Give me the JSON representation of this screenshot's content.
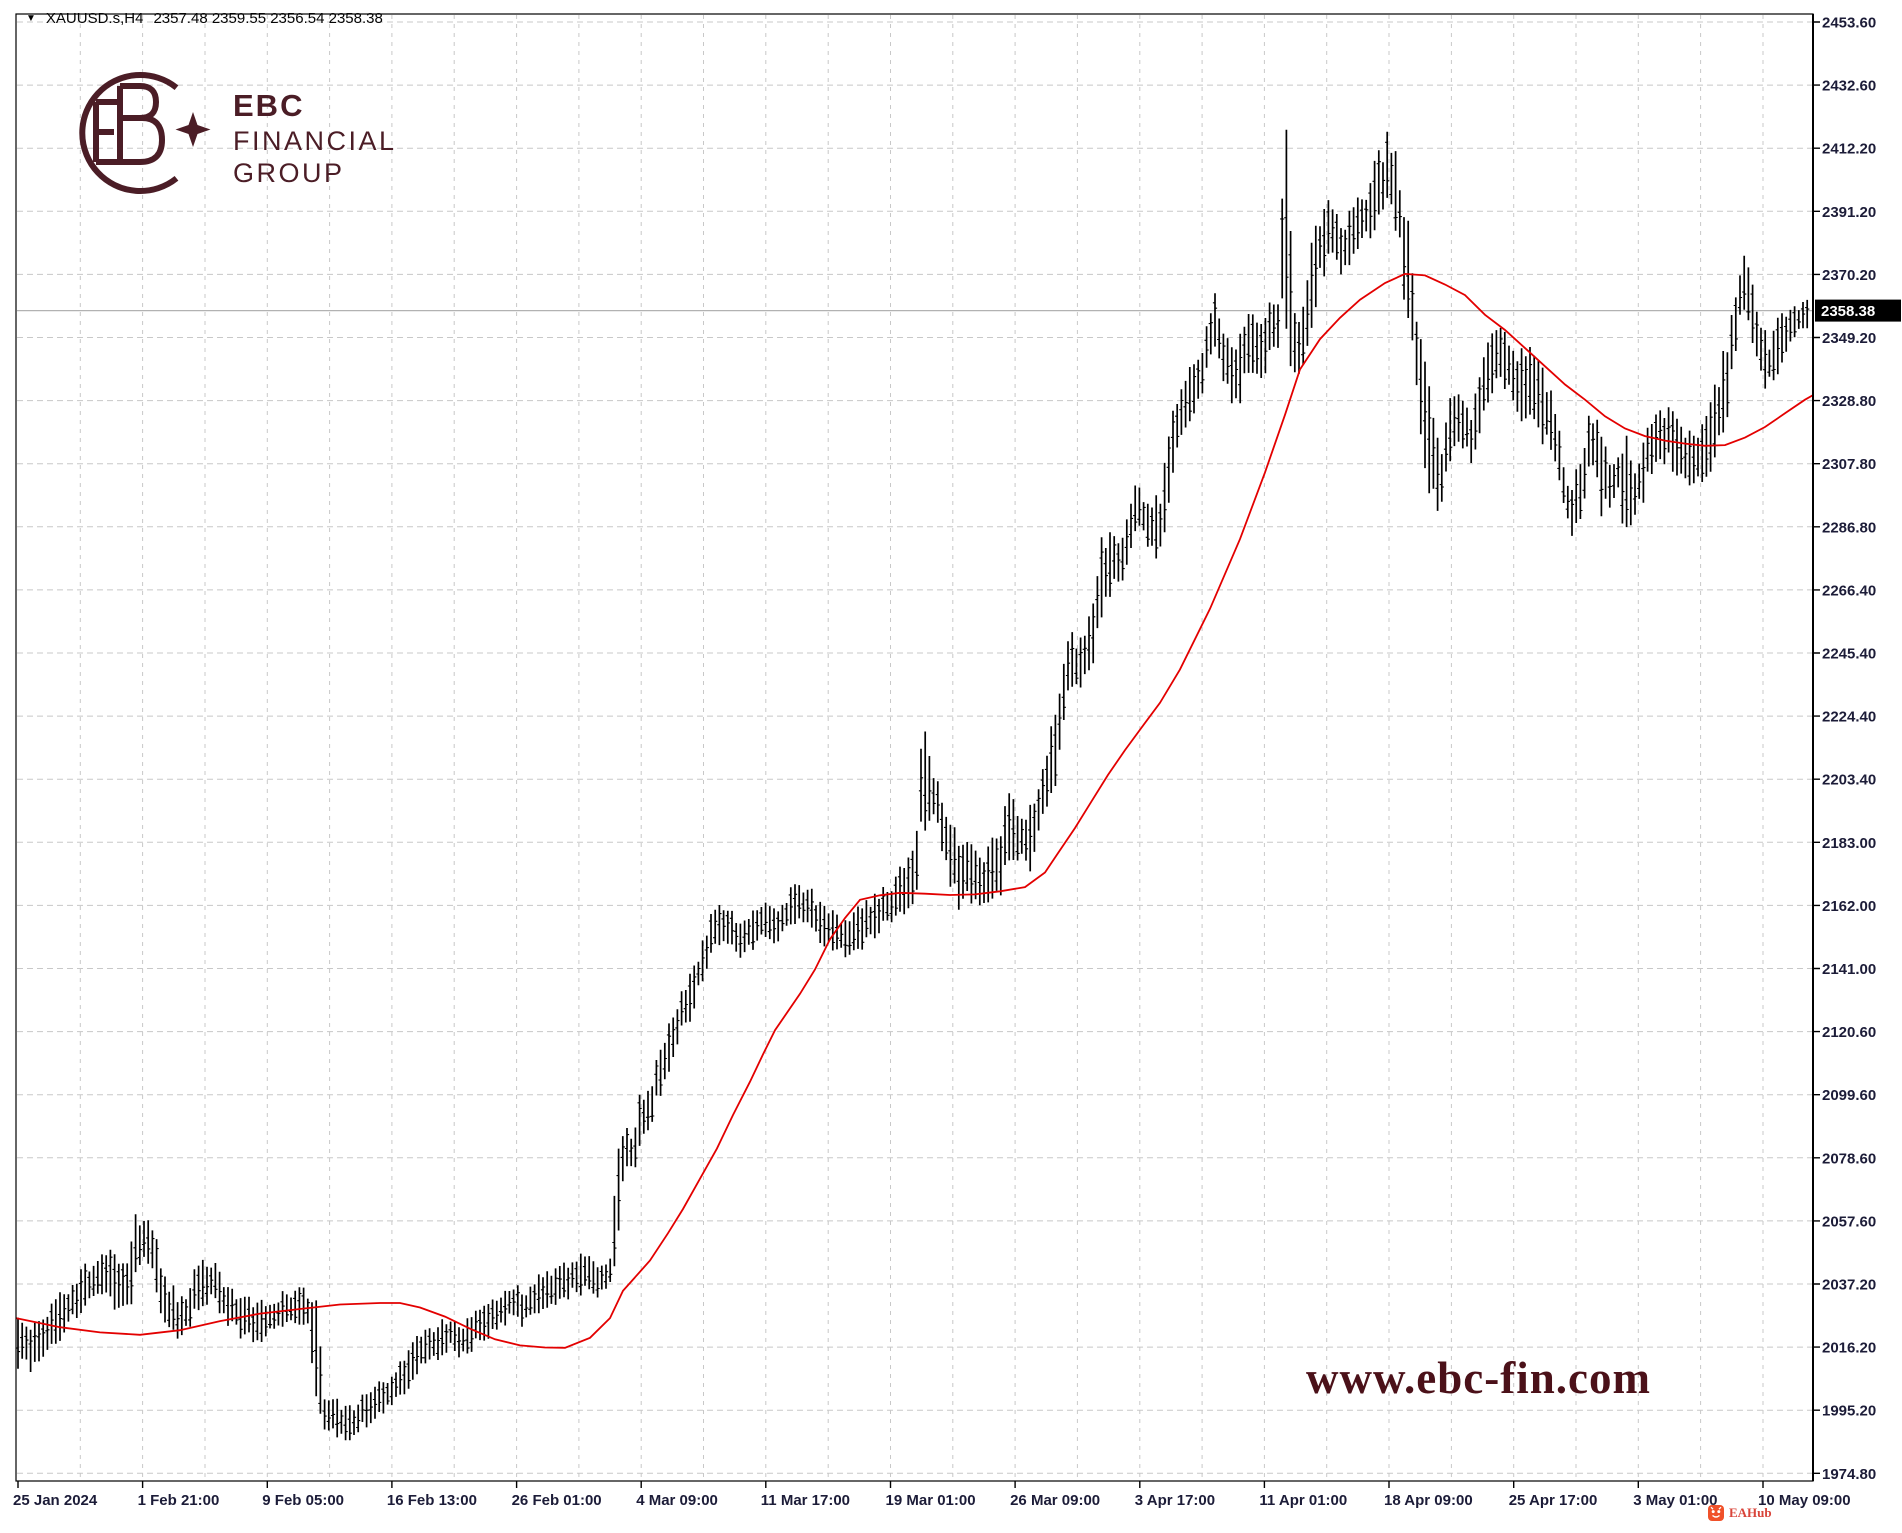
{
  "header": {
    "collapse_glyph": "▼",
    "symbol": "XAUUSD.s,H4",
    "ohlc": "2357.48 2359.55 2356.54 2358.38"
  },
  "logo": {
    "line1": "EBC",
    "line2": "FINANCIAL",
    "line3": "GROUP",
    "color": "#4b1d26"
  },
  "watermark": {
    "text": "www.ebc-fin.com",
    "color": "#4b1119"
  },
  "attribution": {
    "label": "EAHub",
    "icon_color": "#f0512a",
    "text_color": "#d9453a"
  },
  "chart_data": {
    "type": "bar",
    "subtype": "ohlc-bars-with-moving-average",
    "symbol": "XAUUSD.s",
    "timeframe": "H4",
    "title": "XAUUSD.s,H4 2357.48 2359.55 2356.54 2358.38",
    "last_price": 2358.38,
    "last_price_label": "2358.38",
    "ylim": [
      1974.8,
      2453.6
    ],
    "grid": "dashed",
    "price_axis": {
      "side": "right",
      "labels": [
        "2453.60",
        "2432.60",
        "2412.20",
        "2391.20",
        "2370.20",
        "2349.20",
        "2328.80",
        "2307.80",
        "2286.80",
        "2266.40",
        "2245.40",
        "2224.40",
        "2203.40",
        "2183.00",
        "2162.00",
        "2141.00",
        "2120.60",
        "2099.60",
        "2078.60",
        "2057.60",
        "2037.20",
        "2016.20",
        "1995.20",
        "1974.80"
      ]
    },
    "time_axis": {
      "side": "bottom",
      "labels": [
        "25 Jan 2024",
        "1 Feb 21:00",
        "9 Feb 05:00",
        "16 Feb 13:00",
        "26 Feb 01:00",
        "4 Mar 09:00",
        "11 Mar 17:00",
        "19 Mar 01:00",
        "26 Mar 09:00",
        "3 Apr 17:00",
        "11 Apr 01:00",
        "18 Apr 09:00",
        "25 Apr 17:00",
        "3 May 01:00",
        "10 May 09:00"
      ]
    },
    "colors": {
      "bars": "#000000",
      "ma": "#e30000",
      "grid": "#c8c8c8",
      "axis_text": "#1c1c38",
      "price_line": "#b2b2b2",
      "badge_bg": "#000000"
    },
    "sampling_note": "bars_envelope = [x_px, high, low] anchors read from chart; ma = [x_px, price]",
    "bars_envelope": [
      [
        16,
        2032,
        2006
      ],
      [
        30,
        2026,
        2008
      ],
      [
        45,
        2030,
        2012
      ],
      [
        60,
        2035,
        2018
      ],
      [
        75,
        2040,
        2024
      ],
      [
        90,
        2046,
        2030
      ],
      [
        105,
        2052,
        2034
      ],
      [
        120,
        2046,
        2024
      ],
      [
        130,
        2048,
        2028
      ],
      [
        135,
        2062,
        2034
      ],
      [
        138,
        2065,
        2036
      ],
      [
        143,
        2060,
        2044
      ],
      [
        152,
        2058,
        2040
      ],
      [
        165,
        2043,
        2019
      ],
      [
        180,
        2032,
        2017
      ],
      [
        195,
        2043,
        2025
      ],
      [
        210,
        2048,
        2030
      ],
      [
        225,
        2040,
        2024
      ],
      [
        240,
        2035,
        2018
      ],
      [
        255,
        2032,
        2016
      ],
      [
        270,
        2034,
        2019
      ],
      [
        285,
        2036,
        2021
      ],
      [
        300,
        2038,
        2022
      ],
      [
        310,
        2036,
        2021
      ],
      [
        315,
        2034,
        1996
      ],
      [
        319,
        2030,
        1991
      ],
      [
        324,
        2002,
        1988
      ],
      [
        338,
        2000,
        1986
      ],
      [
        348,
        1997,
        1984
      ],
      [
        360,
        2000,
        1988
      ],
      [
        375,
        2005,
        1991
      ],
      [
        390,
        2008,
        1996
      ],
      [
        405,
        2016,
        2000
      ],
      [
        420,
        2022,
        2007
      ],
      [
        435,
        2024,
        2010
      ],
      [
        450,
        2028,
        2014
      ],
      [
        465,
        2026,
        2012
      ],
      [
        480,
        2032,
        2018
      ],
      [
        495,
        2034,
        2020
      ],
      [
        510,
        2038,
        2024
      ],
      [
        525,
        2036,
        2022
      ],
      [
        540,
        2042,
        2028
      ],
      [
        555,
        2043,
        2030
      ],
      [
        570,
        2046,
        2032
      ],
      [
        585,
        2048,
        2034
      ],
      [
        600,
        2046,
        2031
      ],
      [
        612,
        2046,
        2038
      ],
      [
        616,
        2080,
        2042
      ],
      [
        620,
        2088,
        2058
      ],
      [
        626,
        2090,
        2076
      ],
      [
        633,
        2088,
        2072
      ],
      [
        640,
        2101,
        2082
      ],
      [
        652,
        2103,
        2088
      ],
      [
        658,
        2118,
        2096
      ],
      [
        664,
        2121,
        2102
      ],
      [
        672,
        2126,
        2108
      ],
      [
        680,
        2136,
        2118
      ],
      [
        692,
        2141,
        2124
      ],
      [
        702,
        2152,
        2136
      ],
      [
        714,
        2163,
        2146
      ],
      [
        725,
        2165,
        2150
      ],
      [
        737,
        2158,
        2143
      ],
      [
        750,
        2160,
        2146
      ],
      [
        762,
        2164,
        2149
      ],
      [
        775,
        2162,
        2148
      ],
      [
        788,
        2168,
        2152
      ],
      [
        800,
        2171,
        2156
      ],
      [
        815,
        2167,
        2151
      ],
      [
        830,
        2162,
        2147
      ],
      [
        845,
        2159,
        2144
      ],
      [
        860,
        2164,
        2147
      ],
      [
        875,
        2167,
        2150
      ],
      [
        890,
        2170,
        2155
      ],
      [
        905,
        2178,
        2159
      ],
      [
        918,
        2188,
        2163
      ],
      [
        921,
        2218,
        2184
      ],
      [
        925,
        2223,
        2186
      ],
      [
        928,
        2213,
        2190
      ],
      [
        935,
        2208,
        2188
      ],
      [
        945,
        2197,
        2176
      ],
      [
        958,
        2186,
        2157
      ],
      [
        970,
        2184,
        2163
      ],
      [
        985,
        2182,
        2160
      ],
      [
        1000,
        2188,
        2162
      ],
      [
        1006,
        2201,
        2169
      ],
      [
        1015,
        2198,
        2178
      ],
      [
        1028,
        2193,
        2171
      ],
      [
        1040,
        2206,
        2183
      ],
      [
        1050,
        2221,
        2194
      ],
      [
        1058,
        2237,
        2205
      ],
      [
        1068,
        2256,
        2230
      ],
      [
        1080,
        2252,
        2228
      ],
      [
        1090,
        2262,
        2238
      ],
      [
        1102,
        2288,
        2252
      ],
      [
        1113,
        2287,
        2264
      ],
      [
        1122,
        2283,
        2264
      ],
      [
        1133,
        2302,
        2280
      ],
      [
        1142,
        2300,
        2284
      ],
      [
        1152,
        2297,
        2277
      ],
      [
        1160,
        2300,
        2276
      ],
      [
        1172,
        2332,
        2300
      ],
      [
        1183,
        2337,
        2318
      ],
      [
        1195,
        2343,
        2320
      ],
      [
        1207,
        2354,
        2336
      ],
      [
        1216,
        2366,
        2344
      ],
      [
        1227,
        2352,
        2330
      ],
      [
        1237,
        2348,
        2322
      ],
      [
        1247,
        2360,
        2336
      ],
      [
        1258,
        2356,
        2334
      ],
      [
        1270,
        2362,
        2340
      ],
      [
        1280,
        2364,
        2342
      ],
      [
        1283,
        2430,
        2348
      ],
      [
        1288,
        2432,
        2347
      ],
      [
        1292,
        2360,
        2335
      ],
      [
        1298,
        2356,
        2333
      ],
      [
        1306,
        2371,
        2342
      ],
      [
        1318,
        2394,
        2362
      ],
      [
        1330,
        2399,
        2374
      ],
      [
        1342,
        2387,
        2368
      ],
      [
        1353,
        2396,
        2376
      ],
      [
        1365,
        2400,
        2378
      ],
      [
        1377,
        2410,
        2384
      ],
      [
        1388,
        2418,
        2390
      ],
      [
        1398,
        2409,
        2380
      ],
      [
        1408,
        2390,
        2348
      ],
      [
        1418,
        2360,
        2325
      ],
      [
        1430,
        2332,
        2292
      ],
      [
        1440,
        2312,
        2291
      ],
      [
        1450,
        2332,
        2308
      ],
      [
        1462,
        2331,
        2312
      ],
      [
        1472,
        2326,
        2305
      ],
      [
        1483,
        2348,
        2322
      ],
      [
        1495,
        2352,
        2330
      ],
      [
        1507,
        2354,
        2331
      ],
      [
        1520,
        2346,
        2322
      ],
      [
        1532,
        2348,
        2320
      ],
      [
        1545,
        2340,
        2312
      ],
      [
        1557,
        2326,
        2300
      ],
      [
        1570,
        2300,
        2282
      ],
      [
        1580,
        2311,
        2289
      ],
      [
        1592,
        2329,
        2305
      ],
      [
        1602,
        2318,
        2288
      ],
      [
        1612,
        2311,
        2292
      ],
      [
        1620,
        2315,
        2297
      ],
      [
        1625,
        2321,
        2276
      ],
      [
        1630,
        2310,
        2284
      ],
      [
        1637,
        2310,
        2288
      ],
      [
        1648,
        2322,
        2300
      ],
      [
        1660,
        2330,
        2308
      ],
      [
        1672,
        2327,
        2305
      ],
      [
        1683,
        2320,
        2298
      ],
      [
        1695,
        2318,
        2300
      ],
      [
        1707,
        2324,
        2302
      ],
      [
        1718,
        2340,
        2310
      ],
      [
        1728,
        2352,
        2324
      ],
      [
        1736,
        2370,
        2344
      ],
      [
        1742,
        2379,
        2356
      ],
      [
        1750,
        2372,
        2350
      ],
      [
        1760,
        2356,
        2333
      ],
      [
        1770,
        2350,
        2332
      ],
      [
        1780,
        2358,
        2338
      ],
      [
        1790,
        2361,
        2344
      ],
      [
        1800,
        2362,
        2350
      ],
      [
        1810,
        2362,
        2352
      ]
    ],
    "ma": {
      "color": "#e30000",
      "points": [
        [
          16,
          2026
        ],
        [
          60,
          2023
        ],
        [
          100,
          2021.3
        ],
        [
          140,
          2020.5
        ],
        [
          180,
          2022
        ],
        [
          220,
          2025
        ],
        [
          260,
          2027.5
        ],
        [
          300,
          2029
        ],
        [
          340,
          2030.5
        ],
        [
          380,
          2031
        ],
        [
          400,
          2031
        ],
        [
          420,
          2029.5
        ],
        [
          445,
          2026.5
        ],
        [
          470,
          2022.5
        ],
        [
          495,
          2019
        ],
        [
          520,
          2017
        ],
        [
          545,
          2016.3
        ],
        [
          565,
          2016.2
        ],
        [
          590,
          2019.5
        ],
        [
          610,
          2026
        ],
        [
          623,
          2035
        ],
        [
          650,
          2045
        ],
        [
          668,
          2054
        ],
        [
          683,
          2062
        ],
        [
          700,
          2072
        ],
        [
          717,
          2082
        ],
        [
          733,
          2093
        ],
        [
          750,
          2104
        ],
        [
          763,
          2113
        ],
        [
          775,
          2121
        ],
        [
          800,
          2133
        ],
        [
          815,
          2141
        ],
        [
          830,
          2151
        ],
        [
          845,
          2158
        ],
        [
          860,
          2164
        ],
        [
          880,
          2165.5
        ],
        [
          900,
          2166.3
        ],
        [
          925,
          2166
        ],
        [
          950,
          2165.6
        ],
        [
          975,
          2165.8
        ],
        [
          1000,
          2166.8
        ],
        [
          1025,
          2168.2
        ],
        [
          1045,
          2173
        ],
        [
          1058,
          2179.4
        ],
        [
          1075,
          2187.7
        ],
        [
          1091,
          2196.2
        ],
        [
          1108,
          2205.2
        ],
        [
          1125,
          2213.4
        ],
        [
          1142,
          2221
        ],
        [
          1160,
          2229
        ],
        [
          1180,
          2240
        ],
        [
          1210,
          2260
        ],
        [
          1240,
          2283
        ],
        [
          1265,
          2305
        ],
        [
          1285,
          2324
        ],
        [
          1300,
          2339
        ],
        [
          1320,
          2349
        ],
        [
          1340,
          2356
        ],
        [
          1360,
          2362
        ],
        [
          1385,
          2367.5
        ],
        [
          1405,
          2370.5
        ],
        [
          1425,
          2370
        ],
        [
          1445,
          2367
        ],
        [
          1465,
          2363.5
        ],
        [
          1485,
          2357
        ],
        [
          1505,
          2352
        ],
        [
          1525,
          2346
        ],
        [
          1545,
          2340
        ],
        [
          1565,
          2334
        ],
        [
          1585,
          2329
        ],
        [
          1605,
          2323.5
        ],
        [
          1625,
          2319.5
        ],
        [
          1645,
          2317
        ],
        [
          1665,
          2315.5
        ],
        [
          1685,
          2314.5
        ],
        [
          1705,
          2313.8
        ],
        [
          1725,
          2314
        ],
        [
          1745,
          2316.5
        ],
        [
          1765,
          2320
        ],
        [
          1785,
          2324.5
        ],
        [
          1805,
          2329
        ],
        [
          1813,
          2330.5
        ]
      ]
    }
  }
}
